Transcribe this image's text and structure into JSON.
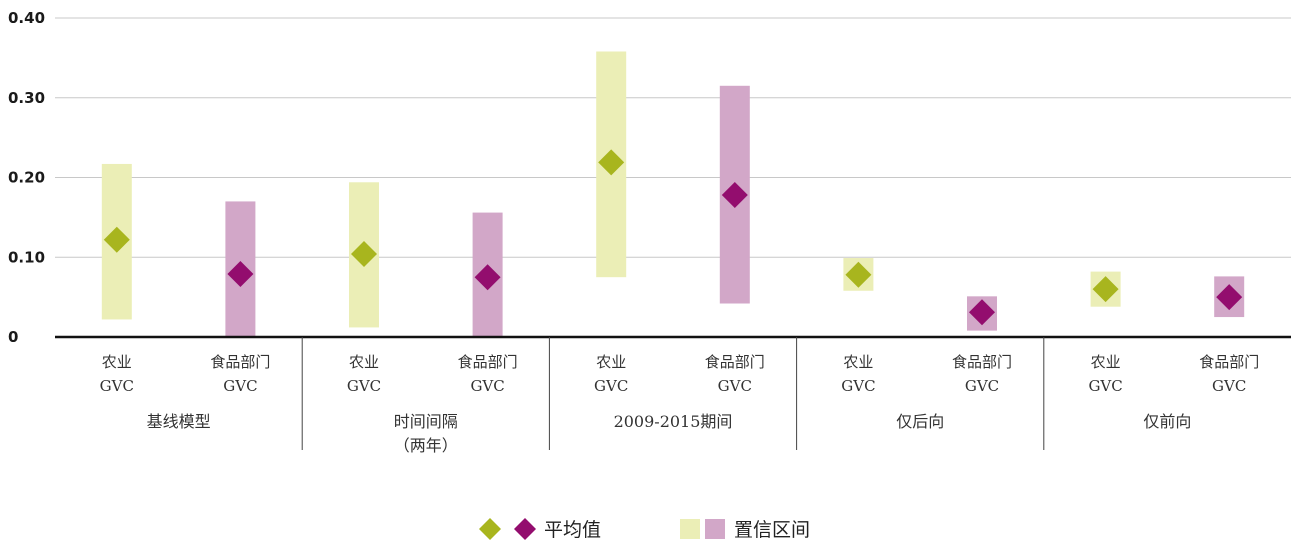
{
  "chart_data": {
    "type": "scatter",
    "y_ticks": [
      "0",
      "0.10",
      "0.20",
      "0.30",
      "0.40"
    ],
    "ylim": [
      0,
      0.4
    ],
    "grid": true,
    "colors": {
      "agri_mean": "#a8b51e",
      "agri_ci": "#ebeeb6",
      "food_mean": "#930d6e",
      "food_ci": "#d2a7c8",
      "grid": "#c8c8c8",
      "axis": "#111111"
    },
    "groups": [
      {
        "label": "基线模型",
        "label_line2": "",
        "items": [
          {
            "label_line1": "农业",
            "label_line2": "GVC",
            "kind": "agri",
            "mean": 0.122,
            "ci_low": 0.022,
            "ci_high": 0.217
          },
          {
            "label_line1": "食品部门",
            "label_line2": "GVC",
            "kind": "food",
            "mean": 0.079,
            "ci_low": 0.0,
            "ci_high": 0.17
          }
        ]
      },
      {
        "label": "时间间隔",
        "label_line2": "（两年）",
        "items": [
          {
            "label_line1": "农业",
            "label_line2": "GVC",
            "kind": "agri",
            "mean": 0.104,
            "ci_low": 0.012,
            "ci_high": 0.194
          },
          {
            "label_line1": "食品部门",
            "label_line2": "GVC",
            "kind": "food",
            "mean": 0.075,
            "ci_low": 0.0,
            "ci_high": 0.156
          }
        ]
      },
      {
        "label": "2009-2015期间",
        "label_line2": "",
        "items": [
          {
            "label_line1": "农业",
            "label_line2": "GVC",
            "kind": "agri",
            "mean": 0.219,
            "ci_low": 0.075,
            "ci_high": 0.358
          },
          {
            "label_line1": "食品部门",
            "label_line2": "GVC",
            "kind": "food",
            "mean": 0.178,
            "ci_low": 0.042,
            "ci_high": 0.315
          }
        ]
      },
      {
        "label": "仅后向",
        "label_line2": "",
        "items": [
          {
            "label_line1": "农业",
            "label_line2": "GVC",
            "kind": "agri",
            "mean": 0.078,
            "ci_low": 0.058,
            "ci_high": 0.099
          },
          {
            "label_line1": "食品部门",
            "label_line2": "GVC",
            "kind": "food",
            "mean": 0.031,
            "ci_low": 0.008,
            "ci_high": 0.051
          }
        ]
      },
      {
        "label": "仅前向",
        "label_line2": "",
        "items": [
          {
            "label_line1": "农业",
            "label_line2": "GVC",
            "kind": "agri",
            "mean": 0.06,
            "ci_low": 0.038,
            "ci_high": 0.082
          },
          {
            "label_line1": "食品部门",
            "label_line2": "GVC",
            "kind": "food",
            "mean": 0.05,
            "ci_low": 0.025,
            "ci_high": 0.076
          }
        ]
      }
    ],
    "legend": {
      "position": "bottom-center",
      "mean_label": "平均值",
      "ci_label": "置信区间"
    }
  }
}
